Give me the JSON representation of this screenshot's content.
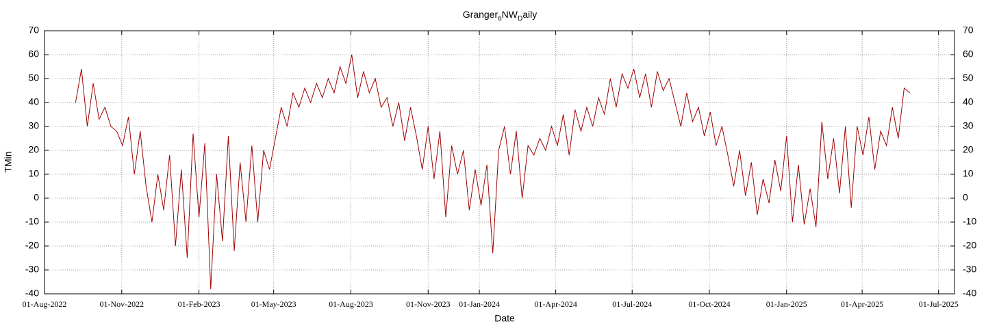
{
  "chart_data": {
    "type": "line",
    "title": [
      "Granger",
      "6",
      "NW",
      "D",
      "aily"
    ],
    "xlabel": "Date",
    "ylabel": "TMin",
    "xlim": [
      "01-Aug-2022",
      "20-Jul-2025"
    ],
    "xticks": [
      "01-Aug-2022",
      "01-Nov-2022",
      "01-Feb-2023",
      "01-May-2023",
      "01-Aug-2023",
      "01-Nov-2023",
      "01-Jan-2024",
      "01-Apr-2024",
      "01-Jul-2024",
      "01-Oct-2024",
      "01-Jan-2025",
      "01-Apr-2025",
      "01-Jul-2025"
    ],
    "ylim": [
      -40,
      70
    ],
    "yticks": [
      -40,
      -30,
      -20,
      -10,
      0,
      10,
      20,
      30,
      40,
      50,
      60,
      70
    ],
    "grid": true,
    "x": [
      "07-Sep-2022",
      "14-Sep-2022",
      "21-Sep-2022",
      "28-Sep-2022",
      "05-Oct-2022",
      "12-Oct-2022",
      "19-Oct-2022",
      "26-Oct-2022",
      "02-Nov-2022",
      "09-Nov-2022",
      "16-Nov-2022",
      "23-Nov-2022",
      "30-Nov-2022",
      "07-Dec-2022",
      "14-Dec-2022",
      "21-Dec-2022",
      "28-Dec-2022",
      "04-Jan-2023",
      "11-Jan-2023",
      "18-Jan-2023",
      "25-Jan-2023",
      "01-Feb-2023",
      "08-Feb-2023",
      "15-Feb-2023",
      "22-Feb-2023",
      "01-Mar-2023",
      "08-Mar-2023",
      "15-Mar-2023",
      "22-Mar-2023",
      "29-Mar-2023",
      "05-Apr-2023",
      "12-Apr-2023",
      "19-Apr-2023",
      "26-Apr-2023",
      "03-May-2023",
      "10-May-2023",
      "17-May-2023",
      "24-May-2023",
      "31-May-2023",
      "07-Jun-2023",
      "14-Jun-2023",
      "21-Jun-2023",
      "28-Jun-2023",
      "05-Jul-2023",
      "12-Jul-2023",
      "19-Jul-2023",
      "26-Jul-2023",
      "02-Aug-2023",
      "09-Aug-2023",
      "16-Aug-2023",
      "23-Aug-2023",
      "30-Aug-2023",
      "06-Sep-2023",
      "13-Sep-2023",
      "20-Sep-2023",
      "27-Sep-2023",
      "04-Oct-2023",
      "11-Oct-2023",
      "18-Oct-2023",
      "25-Oct-2023",
      "01-Nov-2023",
      "08-Nov-2023",
      "15-Nov-2023",
      "22-Nov-2023",
      "29-Nov-2023",
      "06-Dec-2023",
      "13-Dec-2023",
      "20-Dec-2023",
      "27-Dec-2023",
      "03-Jan-2024",
      "10-Jan-2024",
      "17-Jan-2024",
      "24-Jan-2024",
      "31-Jan-2024",
      "07-Feb-2024",
      "14-Feb-2024",
      "21-Feb-2024",
      "28-Feb-2024",
      "06-Mar-2024",
      "13-Mar-2024",
      "20-Mar-2024",
      "27-Mar-2024",
      "03-Apr-2024",
      "10-Apr-2024",
      "17-Apr-2024",
      "24-Apr-2024",
      "01-May-2024",
      "08-May-2024",
      "15-May-2024",
      "22-May-2024",
      "29-May-2024",
      "05-Jun-2024",
      "12-Jun-2024",
      "19-Jun-2024",
      "26-Jun-2024",
      "03-Jul-2024",
      "10-Jul-2024",
      "17-Jul-2024",
      "24-Jul-2024",
      "31-Jul-2024",
      "07-Aug-2024",
      "14-Aug-2024",
      "21-Aug-2024",
      "28-Aug-2024",
      "04-Sep-2024",
      "11-Sep-2024",
      "18-Sep-2024",
      "25-Sep-2024",
      "02-Oct-2024",
      "09-Oct-2024",
      "16-Oct-2024",
      "23-Oct-2024",
      "30-Oct-2024",
      "06-Nov-2024",
      "13-Nov-2024",
      "20-Nov-2024",
      "27-Nov-2024",
      "04-Dec-2024",
      "11-Dec-2024",
      "18-Dec-2024",
      "25-Dec-2024",
      "01-Jan-2025",
      "08-Jan-2025",
      "15-Jan-2025",
      "22-Jan-2025",
      "29-Jan-2025",
      "05-Feb-2025",
      "12-Feb-2025",
      "19-Feb-2025",
      "26-Feb-2025",
      "05-Mar-2025",
      "12-Mar-2025",
      "19-Mar-2025",
      "26-Mar-2025",
      "02-Apr-2025",
      "09-Apr-2025",
      "16-Apr-2025",
      "23-Apr-2025",
      "30-Apr-2025",
      "07-May-2025",
      "14-May-2025",
      "21-May-2025",
      "28-May-2025"
    ],
    "series": [
      {
        "color": "#a00000",
        "values": [
          40,
          54,
          30,
          48,
          33,
          38,
          30,
          28,
          22,
          34,
          10,
          28,
          5,
          -10,
          10,
          -5,
          18,
          -20,
          12,
          -25,
          27,
          -8,
          23,
          -38,
          10,
          -18,
          26,
          -22,
          15,
          -10,
          22,
          -10,
          20,
          12,
          25,
          38,
          30,
          44,
          38,
          46,
          40,
          48,
          42,
          50,
          44,
          55,
          48,
          60,
          42,
          53,
          44,
          50,
          38,
          42,
          30,
          40,
          24,
          38,
          26,
          12,
          30,
          8,
          28,
          -8,
          22,
          10,
          20,
          -5,
          12,
          -3,
          14,
          -23,
          20,
          30,
          10,
          28,
          0,
          22,
          18,
          25,
          20,
          30,
          22,
          35,
          18,
          37,
          28,
          38,
          30,
          42,
          35,
          50,
          38,
          52,
          46,
          54,
          42,
          52,
          38,
          53,
          45,
          50,
          40,
          30,
          44,
          32,
          38,
          26,
          36,
          22,
          30,
          18,
          5,
          20,
          1,
          15,
          -7,
          8,
          -2,
          16,
          3,
          26,
          -10,
          14,
          -11,
          4,
          -12,
          32,
          8,
          25,
          2,
          30,
          -4,
          30,
          18,
          34,
          12,
          28,
          22,
          38,
          25,
          46,
          44
        ]
      }
    ]
  }
}
